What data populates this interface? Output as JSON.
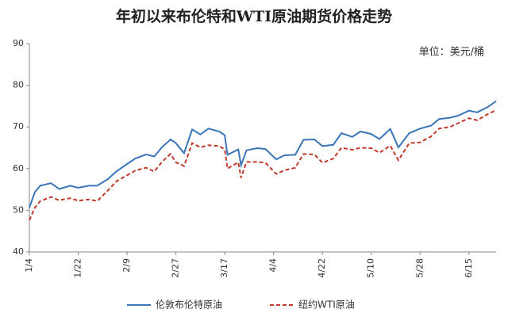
{
  "chart_data": {
    "type": "line",
    "title": "年初以来布伦特和WTI原油期货价格走势",
    "unit": "单位：美元/桶",
    "x": [
      "1/4",
      "1/6",
      "1/8",
      "1/12",
      "1/15",
      "1/19",
      "1/22",
      "1/26",
      "1/29",
      "2/2",
      "2/5",
      "2/9",
      "2/12",
      "2/16",
      "2/19",
      "2/22",
      "2/25",
      "2/27",
      "3/2",
      "3/5",
      "3/8",
      "3/11",
      "3/15",
      "3/17",
      "3/18",
      "3/22",
      "3/23",
      "3/25",
      "3/29",
      "4/1",
      "4/5",
      "4/8",
      "4/12",
      "4/15",
      "4/19",
      "4/22",
      "4/26",
      "4/29",
      "5/3",
      "5/6",
      "5/10",
      "5/13",
      "5/17",
      "5/20",
      "5/24",
      "5/28",
      "6/1",
      "6/4",
      "6/8",
      "6/11",
      "6/15",
      "6/18",
      "6/22",
      "6/25"
    ],
    "series": [
      {
        "name": "伦敦布伦特原油",
        "color": "#3a75b8",
        "dash": false,
        "values": [
          50.6,
          54.3,
          55.9,
          56.5,
          55.1,
          55.9,
          55.4,
          55.9,
          55.9,
          57.5,
          59.3,
          61.1,
          62.4,
          63.4,
          62.9,
          65.2,
          67,
          66.1,
          63.7,
          69.4,
          68.2,
          69.6,
          68.9,
          68,
          63.3,
          64.6,
          60.8,
          64.4,
          64.9,
          64.7,
          62.2,
          63.2,
          63.3,
          66.9,
          67,
          65.4,
          65.7,
          68.5,
          67.6,
          68.9,
          68.3,
          67.1,
          69.5,
          65.1,
          68.5,
          69.6,
          70.3,
          71.9,
          72.2,
          72.7,
          73.9,
          73.5,
          74.8,
          76.2
        ]
      },
      {
        "name": "纽约WTI原油",
        "color": "#c0392b",
        "dash": true,
        "values": [
          47.6,
          50.6,
          52.2,
          53.2,
          52.4,
          52.9,
          52.3,
          52.6,
          52.2,
          54.8,
          56.9,
          58.4,
          59.5,
          60.2,
          59.3,
          61.7,
          63.5,
          61.5,
          60.6,
          66.1,
          65.1,
          65.6,
          65.4,
          64.6,
          60,
          61.5,
          57.8,
          61.6,
          61.6,
          61.4,
          58.7,
          59.6,
          60.2,
          63.5,
          63.4,
          61.4,
          62.4,
          65,
          64.5,
          65,
          64.9,
          63.8,
          65.5,
          62,
          66.1,
          66.3,
          67.7,
          69.6,
          70,
          70.9,
          72.1,
          71.6,
          73.1,
          74
        ]
      }
    ],
    "xlim": [
      "1/4",
      "6/25"
    ],
    "xticks": [
      "1/4",
      "1/22",
      "2/9",
      "2/27",
      "3/17",
      "4/4",
      "4/22",
      "5/10",
      "5/28",
      "6/15"
    ],
    "ylim": [
      40,
      90
    ],
    "yticks": [
      40,
      50,
      60,
      70,
      80,
      90
    ]
  }
}
